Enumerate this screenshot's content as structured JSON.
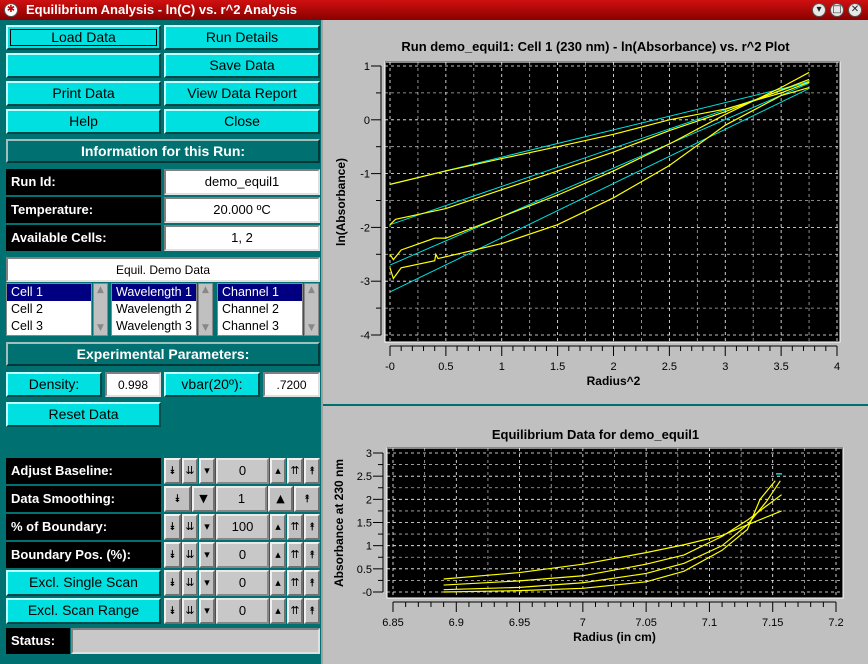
{
  "window": {
    "title": "Equilibrium Analysis - ln(C) vs. r^2 Analysis",
    "icons": [
      "app-icon",
      "minimize-icon",
      "maximize-icon",
      "close-icon"
    ]
  },
  "buttons": {
    "load": "Load Data",
    "run_details": "Run Details",
    "blank": "",
    "save": "Save Data",
    "print": "Print Data",
    "report": "View Data Report",
    "help": "Help",
    "close": "Close"
  },
  "info": {
    "header": "Information for this Run:",
    "run_id_label": "Run Id:",
    "run_id": "demo_equil1",
    "temp_label": "Temperature:",
    "temp": "20.000 ºC",
    "cells_label": "Available Cells:",
    "cells": "1, 2",
    "description": "Equil. Demo Data"
  },
  "lists": {
    "cells": [
      "Cell 1",
      "Cell 2",
      "Cell 3"
    ],
    "wavelengths": [
      "Wavelength 1",
      "Wavelength 2",
      "Wavelength 3"
    ],
    "channels": [
      "Channel 1",
      "Channel 2",
      "Channel 3"
    ]
  },
  "params": {
    "header": "Experimental Parameters:",
    "density_label": "Density:",
    "density": "0.998",
    "vbar_label": "vbar(20º):",
    "vbar": ".7200",
    "reset": "Reset Data"
  },
  "controls": [
    {
      "label": "Adjust Baseline:",
      "value": "0",
      "button": false
    },
    {
      "label": "Data Smoothing:",
      "value": "1",
      "button": false
    },
    {
      "label": "% of Boundary:",
      "value": "100",
      "button": false
    },
    {
      "label": "Boundary Pos. (%):",
      "value": "0",
      "button": false
    },
    {
      "label": "Excl. Single Scan",
      "value": "0",
      "button": true
    },
    {
      "label": "Excl. Scan Range",
      "value": "0",
      "button": true
    }
  ],
  "status": {
    "label": "Status:",
    "value": ""
  },
  "colors": {
    "panel": "#007070",
    "button": "#00e0e0",
    "data": "#ffff00",
    "fit": "#00e0e0",
    "plot_bg": "#000000"
  },
  "chart_data": [
    {
      "type": "line",
      "title": "Run demo_equil1: Cell 1 (230 nm) - ln(Absorbance) vs. r^2 Plot",
      "xlabel": "Radius^2",
      "ylabel": "ln(Absorbance)",
      "xlim": [
        0,
        4
      ],
      "ylim": [
        -4,
        1
      ],
      "xticks": [
        "-0",
        "0.5",
        "1",
        "1.5",
        "2",
        "2.5",
        "3",
        "3.5",
        "4"
      ],
      "yticks": [
        "1",
        "0",
        "-1",
        "-2",
        "-3",
        "-4"
      ],
      "grid": true,
      "data_series": [
        [
          [
            0,
            -1.2
          ],
          [
            0.5,
            -0.95
          ],
          [
            1,
            -0.72
          ],
          [
            1.5,
            -0.5
          ],
          [
            2,
            -0.27
          ],
          [
            2.5,
            0
          ],
          [
            3,
            0.2
          ],
          [
            3.5,
            0.5
          ],
          [
            3.75,
            0.7
          ]
        ],
        [
          [
            0,
            -1.95
          ],
          [
            0.05,
            -1.85
          ],
          [
            0.5,
            -1.65
          ],
          [
            1,
            -1.3
          ],
          [
            1.5,
            -0.95
          ],
          [
            2,
            -0.6
          ],
          [
            2.5,
            -0.2
          ],
          [
            3,
            0.15
          ],
          [
            3.5,
            0.55
          ],
          [
            3.75,
            0.75
          ]
        ],
        [
          [
            0,
            -2.5
          ],
          [
            0.03,
            -2.6
          ],
          [
            0.1,
            -2.42
          ],
          [
            0.4,
            -2.2
          ],
          [
            0.5,
            -2.2
          ],
          [
            1,
            -1.8
          ],
          [
            1.5,
            -1.4
          ],
          [
            2,
            -0.95
          ],
          [
            2.5,
            -0.45
          ],
          [
            3,
            0.1
          ],
          [
            3.5,
            0.6
          ],
          [
            3.75,
            0.88
          ]
        ],
        [
          [
            0,
            -2.75
          ],
          [
            0.03,
            -2.95
          ],
          [
            0.1,
            -2.75
          ],
          [
            0.4,
            -2.62
          ],
          [
            0.41,
            -2.5
          ],
          [
            0.43,
            -2.58
          ],
          [
            1,
            -2.3
          ],
          [
            1.5,
            -1.95
          ],
          [
            2,
            -1.45
          ],
          [
            2.5,
            -0.85
          ],
          [
            3,
            -0.1
          ],
          [
            3.5,
            0.45
          ],
          [
            3.75,
            0.6
          ]
        ]
      ],
      "fit_lines": [
        [
          [
            0,
            -1.2
          ],
          [
            3.75,
            0.7
          ]
        ],
        [
          [
            0,
            -1.95
          ],
          [
            3.75,
            0.72
          ]
        ],
        [
          [
            0,
            -2.7
          ],
          [
            3.75,
            0.68
          ]
        ],
        [
          [
            0,
            -3.2
          ],
          [
            3.75,
            0.58
          ]
        ]
      ]
    },
    {
      "type": "line",
      "title": "Equilibrium Data for demo_equil1",
      "xlabel": "Radius (in cm)",
      "ylabel": "Absorbance at 230 nm",
      "xlim": [
        6.85,
        7.2
      ],
      "ylim": [
        -0.1,
        3
      ],
      "xticks": [
        "6.85",
        "6.9",
        "6.95",
        "7",
        "7.05",
        "7.1",
        "7.15",
        "7.2"
      ],
      "yticks": [
        "3",
        "2.5",
        "2",
        "1.5",
        "1",
        "0.5",
        "-0"
      ],
      "grid": true,
      "data_series": [
        [
          [
            6.89,
            0.28
          ],
          [
            6.95,
            0.42
          ],
          [
            7.0,
            0.6
          ],
          [
            7.05,
            0.85
          ],
          [
            7.08,
            1.02
          ],
          [
            7.11,
            1.22
          ],
          [
            7.13,
            1.45
          ],
          [
            7.157,
            1.75
          ]
        ],
        [
          [
            6.89,
            0.15
          ],
          [
            6.95,
            0.24
          ],
          [
            7.0,
            0.35
          ],
          [
            7.05,
            0.6
          ],
          [
            7.08,
            0.8
          ],
          [
            7.11,
            1.2
          ],
          [
            7.13,
            1.55
          ],
          [
            7.157,
            2.1
          ]
        ],
        [
          [
            6.89,
            0.05
          ],
          [
            6.95,
            0.1
          ],
          [
            7.0,
            0.2
          ],
          [
            7.05,
            0.4
          ],
          [
            7.08,
            0.62
          ],
          [
            7.11,
            1.0
          ],
          [
            7.13,
            1.45
          ],
          [
            7.145,
            1.95
          ],
          [
            7.156,
            2.4
          ]
        ],
        [
          [
            6.89,
            0.0
          ],
          [
            6.95,
            0.03
          ],
          [
            7.0,
            0.08
          ],
          [
            7.05,
            0.22
          ],
          [
            7.08,
            0.45
          ],
          [
            7.11,
            0.9
          ],
          [
            7.13,
            1.35
          ],
          [
            7.14,
            2.0
          ],
          [
            7.152,
            2.4
          ]
        ]
      ],
      "marker": [
        7.155,
        2.55
      ]
    }
  ]
}
